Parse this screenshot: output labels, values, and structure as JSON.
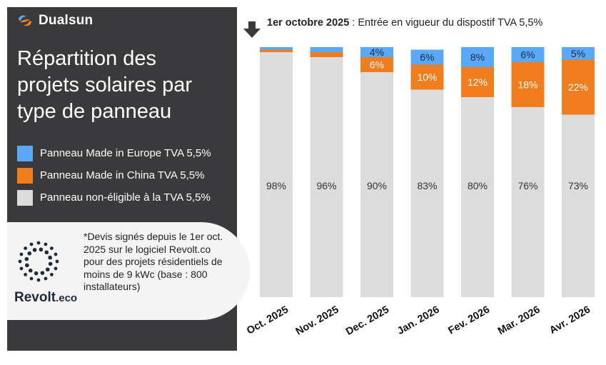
{
  "brand": {
    "name": "Dualsun"
  },
  "title": "Répartition des projets solaires par type de panneau",
  "legend": [
    {
      "label": "Panneau Made in Europe TVA 5,5%",
      "color": "#5aa9f8"
    },
    {
      "label": "Panneau Made in China TVA 5,5%",
      "color": "#f07d1e"
    },
    {
      "label": "Panneau non-éligible à la TVA 5,5%",
      "color": "#dcdcdc"
    }
  ],
  "event": {
    "date": "1er octobre 2025",
    "text": " : Entrée en vigueur du dispostif TVA 5,5%"
  },
  "note": {
    "text": "*Devis signés depuis le 1er oct. 2025 sur le logiciel Revolt.co pour des projets résidentiels de moins de 9 kWc (base : 800 installateurs)",
    "logo_name": "Revolt",
    "logo_tld": ".eco"
  },
  "chart_data": {
    "type": "bar",
    "stacked": true,
    "categories": [
      "Oct. 2025",
      "Nov. 2025",
      "Dec. 2025",
      "Jan. 2026",
      "Fev. 2026",
      "Mar. 2026",
      "Avr. 2026"
    ],
    "ylim": [
      0,
      100
    ],
    "series": [
      {
        "name": "Panneau non-éligible à la TVA 5,5%",
        "color": "#dcdcdc",
        "values": [
          98,
          96,
          90,
          83,
          80,
          76,
          73
        ],
        "labels": [
          "98%",
          "96%",
          "90%",
          "83%",
          "80%",
          "76%",
          "73%"
        ]
      },
      {
        "name": "Panneau Made in China TVA 5,5%",
        "color": "#f07d1e",
        "values": [
          1,
          2,
          6,
          10,
          12,
          18,
          22
        ],
        "labels": [
          "",
          "",
          "6%",
          "10%",
          "12%",
          "18%",
          "22%"
        ]
      },
      {
        "name": "Panneau Made in Europe TVA 5,5%",
        "color": "#5aa9f8",
        "values": [
          1,
          2,
          4,
          6,
          8,
          6,
          5
        ],
        "labels": [
          "",
          "",
          "4%",
          "6%",
          "8%",
          "6%",
          "5%"
        ]
      }
    ]
  }
}
